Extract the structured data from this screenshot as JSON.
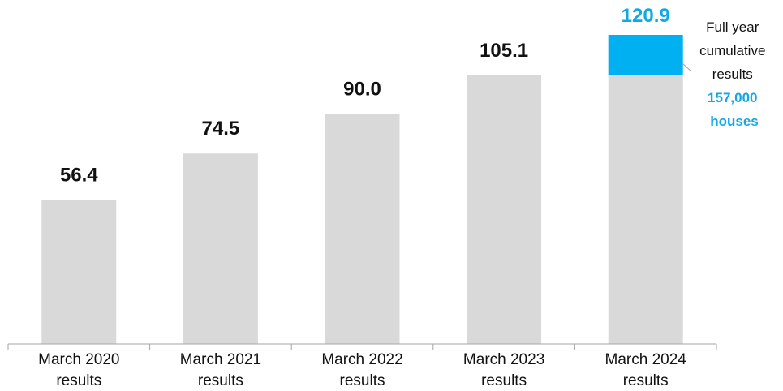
{
  "chart_data": {
    "type": "bar",
    "categories": [
      [
        "March 2020",
        "results"
      ],
      [
        "March 2021",
        "results"
      ],
      [
        "March 2022",
        "results"
      ],
      [
        "March 2023",
        "results"
      ],
      [
        "March 2024",
        "results"
      ]
    ],
    "values": [
      56.4,
      74.5,
      90.0,
      105.1,
      120.9
    ],
    "value_labels": [
      "56.4",
      "74.5",
      "90.0",
      "105.1",
      "120.9"
    ],
    "highlight_segment": {
      "index": 4,
      "from": 105.1,
      "to": 120.9
    },
    "ylim": [
      0,
      125
    ],
    "grid": false,
    "legend": "none",
    "annotation": {
      "lines": [
        "Full year",
        "cumulative",
        "results"
      ],
      "highlight_lines": [
        "157,000",
        "houses"
      ]
    },
    "colors": {
      "bar": "#d9d9d9",
      "highlight": "#00b0f0",
      "highlight_text": "#11a8e6",
      "axis": "#a6a6a6"
    }
  }
}
